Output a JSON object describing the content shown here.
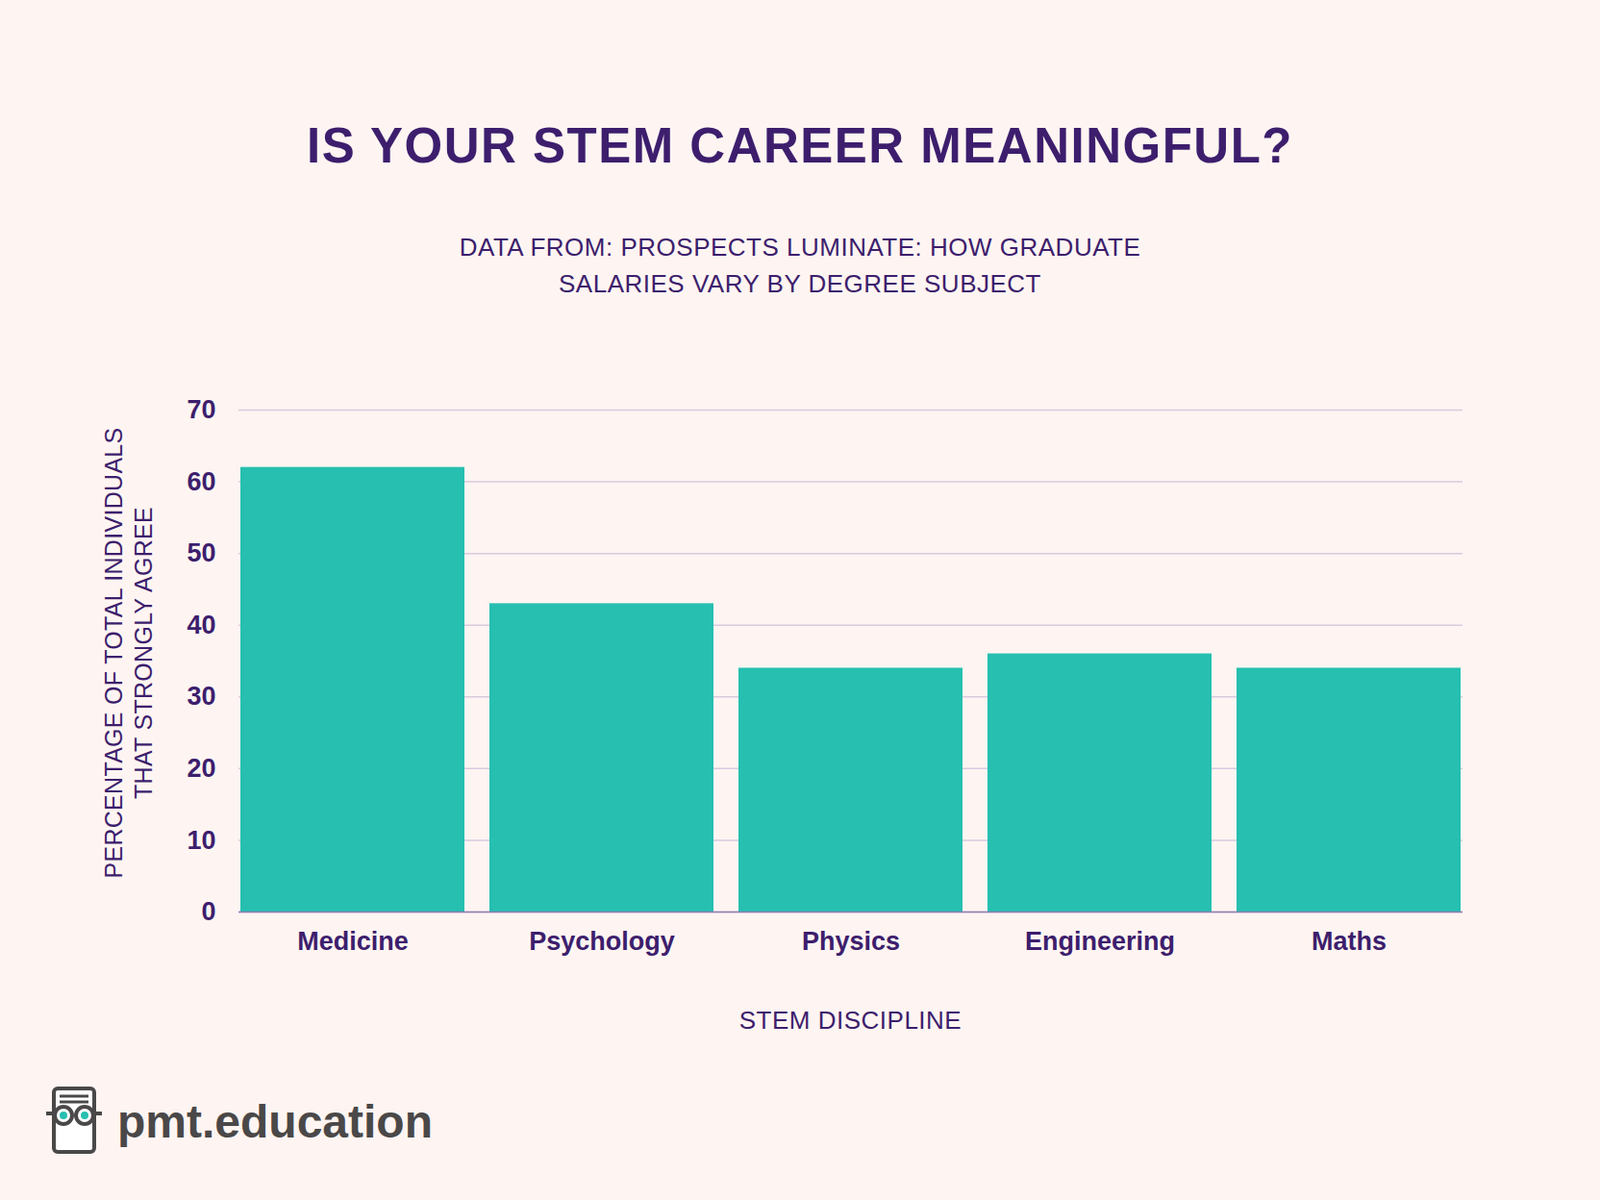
{
  "chart_data": {
    "type": "bar",
    "title": "IS YOUR STEM CAREER MEANINGFUL?",
    "subtitle": [
      "DATA FROM: PROSPECTS LUMINATE: HOW GRADUATE",
      "SALARIES VARY BY DEGREE SUBJECT"
    ],
    "x_label": "STEM DISCIPLINE",
    "y_label": [
      "PERCENTAGE OF TOTAL INDIVIDUALS",
      "THAT STRONGLY AGREE"
    ],
    "categories": [
      "Medicine",
      "Psychology",
      "Physics",
      "Engineering",
      "Maths"
    ],
    "values": [
      62,
      43,
      34,
      36,
      34
    ],
    "color": "#26bfb0",
    "ylim": [
      0,
      70
    ],
    "yticks": [
      0,
      10,
      20,
      30,
      40,
      50,
      60,
      70
    ],
    "grid": true,
    "source": "pmt.education"
  }
}
